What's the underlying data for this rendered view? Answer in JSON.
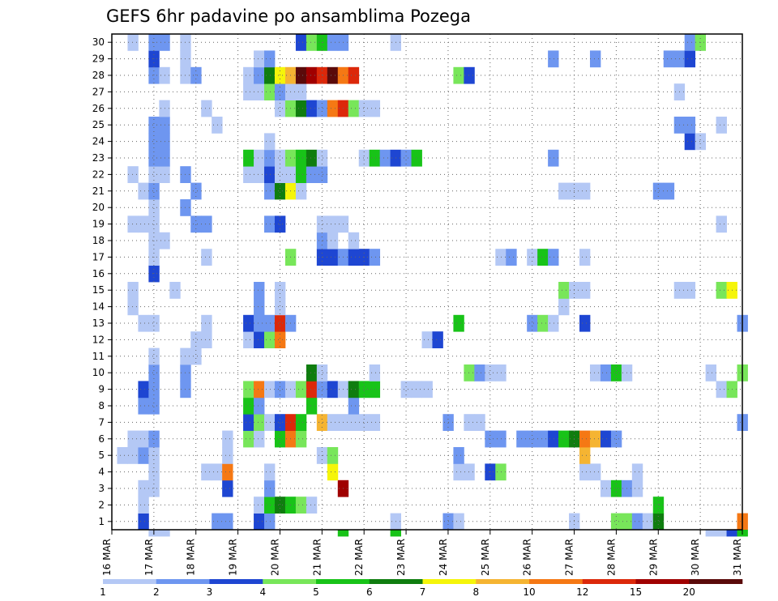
{
  "chart_data": {
    "type": "heatmap",
    "title": "GEFS 6hr padavine po ansamblima Pozega",
    "y_categories": [
      "1",
      "2",
      "3",
      "4",
      "5",
      "6",
      "7",
      "8",
      "9",
      "10",
      "11",
      "12",
      "13",
      "14",
      "15",
      "16",
      "17",
      "18",
      "19",
      "20",
      "21",
      "22",
      "23",
      "24",
      "25",
      "26",
      "27",
      "28",
      "29",
      "30"
    ],
    "x_tick_labels": [
      "16 MAR",
      "17 MAR",
      "18 MAR",
      "19 MAR",
      "20 MAR",
      "21 MAR",
      "22 MAR",
      "23 MAR",
      "24 MAR",
      "25 MAR",
      "26 MAR",
      "27 MAR",
      "28 MAR",
      "29 MAR",
      "30 MAR",
      "31 MAR"
    ],
    "x_steps_per_day": 4,
    "x_range_steps": [
      0,
      60
    ],
    "colorbar": {
      "levels": [
        "1",
        "2",
        "3",
        "4",
        "5",
        "6",
        "7",
        "8",
        "10",
        "12",
        "15",
        "20"
      ],
      "colors": [
        "#b4c8f5",
        "#6e96f0",
        "#1e46d2",
        "#78e65a",
        "#18c318",
        "#0f7d0f",
        "#f5f50a",
        "#f5b432",
        "#f57814",
        "#dc280a",
        "#a00000",
        "#5a0a0a"
      ]
    },
    "grid": true,
    "cells_by_member": {
      "1": [
        [
          3,
          3
        ],
        [
          10,
          2
        ],
        [
          11,
          2
        ],
        [
          14,
          3
        ],
        [
          15,
          2
        ],
        [
          27,
          1
        ],
        [
          32,
          2
        ],
        [
          33,
          1
        ],
        [
          44,
          1
        ],
        [
          48,
          4
        ],
        [
          49,
          4
        ],
        [
          50,
          2
        ],
        [
          51,
          1
        ],
        [
          52,
          6
        ],
        [
          60,
          9
        ]
      ],
      "2": [
        [
          3,
          1
        ],
        [
          14,
          1
        ],
        [
          15,
          5
        ],
        [
          16,
          6
        ],
        [
          17,
          5
        ],
        [
          18,
          4
        ],
        [
          19,
          1
        ],
        [
          52,
          5
        ]
      ],
      "3": [
        [
          3,
          1
        ],
        [
          4,
          1
        ],
        [
          11,
          3
        ],
        [
          15,
          2
        ],
        [
          22,
          11
        ],
        [
          47,
          1
        ],
        [
          48,
          5
        ],
        [
          49,
          2
        ],
        [
          50,
          1
        ]
      ],
      "4": [
        [
          4,
          1
        ],
        [
          9,
          1
        ],
        [
          10,
          1
        ],
        [
          11,
          9
        ],
        [
          15,
          1
        ],
        [
          21,
          7
        ],
        [
          33,
          1
        ],
        [
          34,
          1
        ],
        [
          36,
          3
        ],
        [
          37,
          4
        ],
        [
          45,
          1
        ],
        [
          46,
          1
        ],
        [
          50,
          1
        ]
      ],
      "5": [
        [
          1,
          1
        ],
        [
          2,
          1
        ],
        [
          3,
          2
        ],
        [
          4,
          1
        ],
        [
          11,
          1
        ],
        [
          20,
          1
        ],
        [
          21,
          4
        ],
        [
          33,
          2
        ],
        [
          45,
          8
        ]
      ],
      "6": [
        [
          2,
          1
        ],
        [
          3,
          1
        ],
        [
          4,
          2
        ],
        [
          11,
          1
        ],
        [
          13,
          4
        ],
        [
          14,
          1
        ],
        [
          16,
          5
        ],
        [
          17,
          9
        ],
        [
          18,
          4
        ],
        [
          36,
          2
        ],
        [
          37,
          2
        ],
        [
          39,
          2
        ],
        [
          40,
          2
        ],
        [
          41,
          2
        ],
        [
          42,
          3
        ],
        [
          43,
          5
        ],
        [
          44,
          6
        ],
        [
          45,
          9
        ],
        [
          46,
          8
        ],
        [
          47,
          3
        ],
        [
          48,
          2
        ]
      ],
      "7": [
        [
          13,
          3
        ],
        [
          14,
          4
        ],
        [
          15,
          1
        ],
        [
          16,
          3
        ],
        [
          17,
          10
        ],
        [
          18,
          5
        ],
        [
          20,
          8
        ],
        [
          21,
          1
        ],
        [
          22,
          1
        ],
        [
          23,
          1
        ],
        [
          24,
          1
        ],
        [
          25,
          1
        ],
        [
          32,
          2
        ],
        [
          34,
          1
        ],
        [
          35,
          1
        ],
        [
          60,
          2
        ]
      ],
      "8": [
        [
          3,
          2
        ],
        [
          4,
          2
        ],
        [
          13,
          5
        ],
        [
          14,
          2
        ],
        [
          19,
          5
        ],
        [
          23,
          2
        ]
      ],
      "9": [
        [
          3,
          3
        ],
        [
          4,
          2
        ],
        [
          7,
          2
        ],
        [
          13,
          4
        ],
        [
          14,
          9
        ],
        [
          15,
          1
        ],
        [
          16,
          2
        ],
        [
          17,
          1
        ],
        [
          18,
          4
        ],
        [
          19,
          10
        ],
        [
          20,
          2
        ],
        [
          21,
          3
        ],
        [
          22,
          1
        ],
        [
          23,
          6
        ],
        [
          24,
          5
        ],
        [
          25,
          5
        ],
        [
          28,
          1
        ],
        [
          29,
          1
        ],
        [
          30,
          1
        ],
        [
          58,
          1
        ],
        [
          59,
          4
        ]
      ],
      "10": [
        [
          4,
          2
        ],
        [
          7,
          2
        ],
        [
          19,
          6
        ],
        [
          20,
          1
        ],
        [
          25,
          1
        ],
        [
          34,
          4
        ],
        [
          35,
          2
        ],
        [
          36,
          1
        ],
        [
          37,
          1
        ],
        [
          46,
          1
        ],
        [
          47,
          2
        ],
        [
          48,
          5
        ],
        [
          49,
          1
        ],
        [
          57,
          1
        ],
        [
          60,
          4
        ]
      ],
      "11": [
        [
          4,
          1
        ],
        [
          7,
          1
        ],
        [
          8,
          1
        ]
      ],
      "12": [
        [
          8,
          1
        ],
        [
          9,
          1
        ],
        [
          13,
          1
        ],
        [
          14,
          3
        ],
        [
          15,
          4
        ],
        [
          16,
          9
        ],
        [
          30,
          1
        ],
        [
          31,
          3
        ]
      ],
      "13": [
        [
          3,
          1
        ],
        [
          4,
          1
        ],
        [
          9,
          1
        ],
        [
          13,
          3
        ],
        [
          14,
          2
        ],
        [
          15,
          2
        ],
        [
          16,
          10
        ],
        [
          17,
          2
        ],
        [
          33,
          5
        ],
        [
          40,
          2
        ],
        [
          41,
          4
        ],
        [
          42,
          1
        ],
        [
          45,
          3
        ],
        [
          60,
          2
        ]
      ],
      "14": [
        [
          2,
          1
        ],
        [
          14,
          2
        ],
        [
          16,
          1
        ],
        [
          43,
          1
        ]
      ],
      "15": [
        [
          2,
          1
        ],
        [
          6,
          1
        ],
        [
          14,
          2
        ],
        [
          16,
          1
        ],
        [
          43,
          4
        ],
        [
          44,
          1
        ],
        [
          45,
          1
        ],
        [
          54,
          1
        ],
        [
          55,
          1
        ],
        [
          58,
          4
        ],
        [
          59,
          7
        ]
      ],
      "16": [
        [
          4,
          3
        ]
      ],
      "17": [
        [
          4,
          1
        ],
        [
          9,
          1
        ],
        [
          17,
          4
        ],
        [
          20,
          3
        ],
        [
          21,
          3
        ],
        [
          22,
          2
        ],
        [
          23,
          3
        ],
        [
          24,
          3
        ],
        [
          25,
          2
        ],
        [
          37,
          1
        ],
        [
          38,
          2
        ],
        [
          40,
          1
        ],
        [
          41,
          5
        ],
        [
          42,
          2
        ],
        [
          45,
          1
        ]
      ],
      "18": [
        [
          4,
          1
        ],
        [
          5,
          1
        ],
        [
          20,
          2
        ],
        [
          21,
          1
        ],
        [
          23,
          1
        ]
      ],
      "19": [
        [
          2,
          1
        ],
        [
          3,
          1
        ],
        [
          4,
          1
        ],
        [
          8,
          2
        ],
        [
          9,
          2
        ],
        [
          15,
          2
        ],
        [
          16,
          3
        ],
        [
          20,
          1
        ],
        [
          21,
          1
        ],
        [
          22,
          1
        ],
        [
          58,
          1
        ]
      ],
      "20": [
        [
          4,
          1
        ],
        [
          7,
          2
        ]
      ],
      "21": [
        [
          3,
          1
        ],
        [
          4,
          2
        ],
        [
          8,
          2
        ],
        [
          15,
          2
        ],
        [
          16,
          6
        ],
        [
          17,
          7
        ],
        [
          18,
          1
        ],
        [
          43,
          1
        ],
        [
          44,
          1
        ],
        [
          45,
          1
        ],
        [
          52,
          2
        ],
        [
          53,
          2
        ]
      ],
      "22": [
        [
          2,
          1
        ],
        [
          4,
          1
        ],
        [
          5,
          1
        ],
        [
          7,
          2
        ],
        [
          13,
          1
        ],
        [
          14,
          1
        ],
        [
          15,
          3
        ],
        [
          16,
          1
        ],
        [
          17,
          1
        ],
        [
          18,
          5
        ],
        [
          19,
          2
        ],
        [
          20,
          2
        ]
      ],
      "23": [
        [
          4,
          2
        ],
        [
          5,
          2
        ],
        [
          13,
          5
        ],
        [
          14,
          1
        ],
        [
          15,
          2
        ],
        [
          16,
          1
        ],
        [
          17,
          4
        ],
        [
          18,
          5
        ],
        [
          19,
          6
        ],
        [
          20,
          1
        ],
        [
          24,
          1
        ],
        [
          25,
          5
        ],
        [
          26,
          2
        ],
        [
          27,
          3
        ],
        [
          28,
          2
        ],
        [
          29,
          5
        ],
        [
          42,
          2
        ]
      ],
      "24": [
        [
          4,
          2
        ],
        [
          5,
          2
        ],
        [
          15,
          1
        ],
        [
          55,
          3
        ],
        [
          56,
          1
        ]
      ],
      "25": [
        [
          4,
          2
        ],
        [
          5,
          2
        ],
        [
          10,
          1
        ],
        [
          54,
          2
        ],
        [
          55,
          2
        ],
        [
          58,
          1
        ]
      ],
      "26": [
        [
          5,
          1
        ],
        [
          9,
          1
        ],
        [
          16,
          1
        ],
        [
          17,
          4
        ],
        [
          18,
          6
        ],
        [
          19,
          3
        ],
        [
          20,
          2
        ],
        [
          21,
          9
        ],
        [
          22,
          10
        ],
        [
          23,
          4
        ],
        [
          24,
          1
        ],
        [
          25,
          1
        ]
      ],
      "27": [
        [
          13,
          1
        ],
        [
          14,
          1
        ],
        [
          15,
          4
        ],
        [
          16,
          2
        ],
        [
          17,
          1
        ],
        [
          18,
          1
        ],
        [
          54,
          1
        ]
      ],
      "28": [
        [
          4,
          2
        ],
        [
          5,
          1
        ],
        [
          7,
          1
        ],
        [
          8,
          2
        ],
        [
          13,
          1
        ],
        [
          14,
          2
        ],
        [
          15,
          6
        ],
        [
          16,
          7
        ],
        [
          17,
          8
        ],
        [
          18,
          12
        ],
        [
          19,
          11
        ],
        [
          20,
          10
        ],
        [
          21,
          12
        ],
        [
          22,
          9
        ],
        [
          23,
          10
        ],
        [
          33,
          4
        ],
        [
          34,
          3
        ]
      ],
      "29": [
        [
          4,
          3
        ],
        [
          7,
          1
        ],
        [
          14,
          1
        ],
        [
          15,
          2
        ],
        [
          42,
          2
        ],
        [
          46,
          2
        ],
        [
          53,
          2
        ],
        [
          54,
          2
        ],
        [
          55,
          3
        ]
      ],
      "30": [
        [
          2,
          1
        ],
        [
          4,
          2
        ],
        [
          5,
          2
        ],
        [
          7,
          1
        ],
        [
          18,
          3
        ],
        [
          19,
          4
        ],
        [
          20,
          5
        ],
        [
          21,
          2
        ],
        [
          22,
          2
        ],
        [
          27,
          1
        ],
        [
          55,
          2
        ],
        [
          56,
          4
        ]
      ],
      "below_axis": [
        [
          4,
          1
        ],
        [
          5,
          1
        ],
        [
          22,
          5
        ],
        [
          27,
          5
        ],
        [
          57,
          1
        ],
        [
          58,
          1
        ],
        [
          59,
          3
        ],
        [
          60,
          5
        ]
      ]
    }
  }
}
